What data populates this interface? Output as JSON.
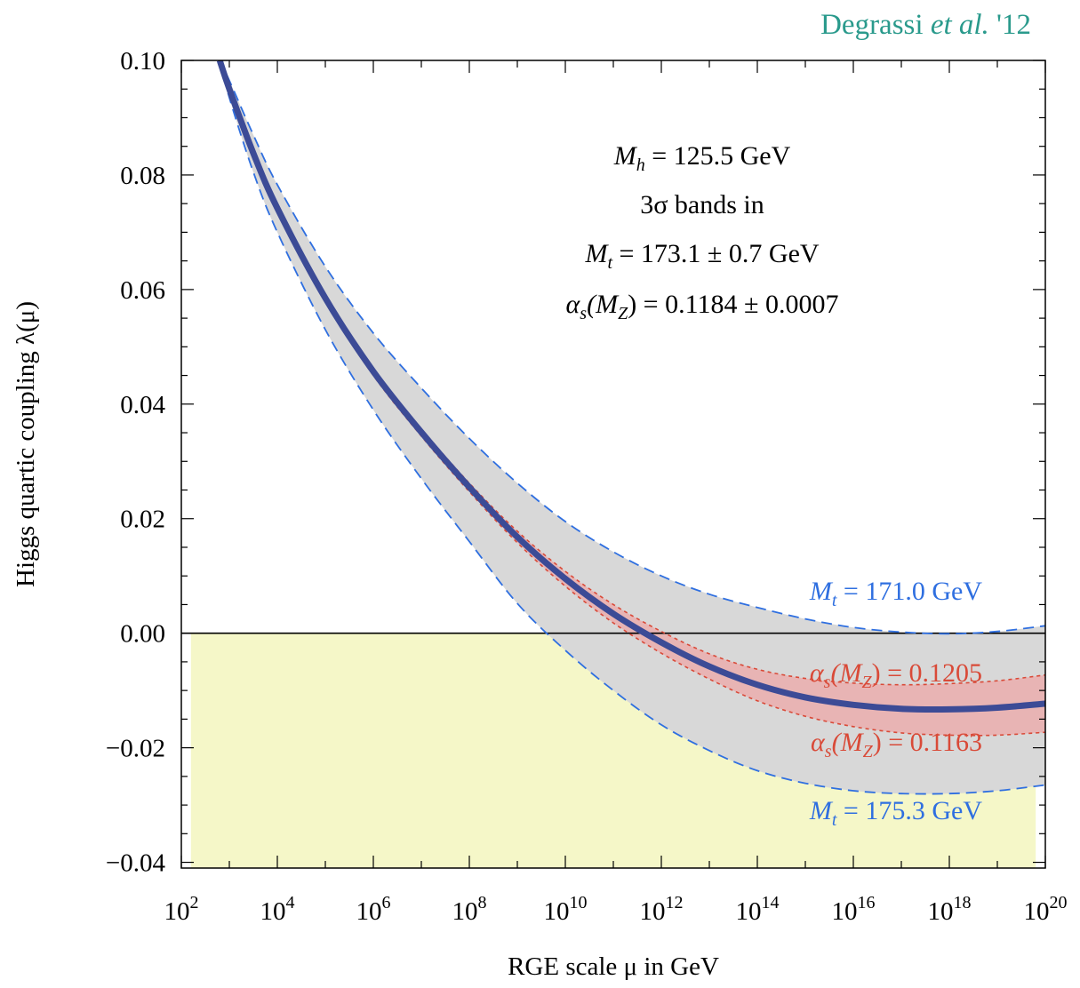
{
  "credit": {
    "prefix": "Degrassi ",
    "etal": "et al.",
    "suffix": " '12"
  },
  "colors": {
    "central": "#3c4b96",
    "red_band": "#e8b4b4",
    "red_line": "#d94a38",
    "gray_band": "#d8d8d8",
    "blue_line": "#2f6fe0",
    "instability": "#f5f7c8",
    "credit": "#2a9a8c"
  },
  "annotation": {
    "mh": {
      "sym": "M",
      "sub": "h",
      "rest": " = 125.5 GeV"
    },
    "line2": "3σ bands in",
    "mt": {
      "sym": "M",
      "sub": "t",
      "rest": " = 173.1 ± 0.7 GeV"
    },
    "as": {
      "sym": "α",
      "sub": "s",
      "mid": "(M",
      "sub2": "Z",
      "rest": ") = 0.1184 ± 0.0007"
    }
  },
  "band_labels": {
    "mt_low": {
      "sym": "M",
      "sub": "t",
      "rest": " = 171.0 GeV"
    },
    "mt_high": {
      "sym": "M",
      "sub": "t",
      "rest": " = 175.3 GeV"
    },
    "as_high": {
      "sym": "α",
      "sub": "s",
      "mid": "(M",
      "sub2": "Z",
      "rest": ") = 0.1205"
    },
    "as_low": {
      "sym": "α",
      "sub": "s",
      "mid": "(M",
      "sub2": "Z",
      "rest": ") = 0.1163"
    }
  },
  "chart_data": {
    "type": "line",
    "title": "",
    "xlabel": "RGE scale μ in GeV",
    "ylabel": "Higgs quartic coupling λ(μ)",
    "xscale": "log10",
    "xlim": [
      2,
      20
    ],
    "ylim": [
      -0.041,
      0.1
    ],
    "xticks": [
      {
        "exp": 2,
        "label": "10",
        "sup": "2"
      },
      {
        "exp": 4,
        "label": "10",
        "sup": "4"
      },
      {
        "exp": 6,
        "label": "10",
        "sup": "6"
      },
      {
        "exp": 8,
        "label": "10",
        "sup": "8"
      },
      {
        "exp": 10,
        "label": "10",
        "sup": "10"
      },
      {
        "exp": 12,
        "label": "10",
        "sup": "12"
      },
      {
        "exp": 14,
        "label": "10",
        "sup": "14"
      },
      {
        "exp": 16,
        "label": "10",
        "sup": "16"
      },
      {
        "exp": 18,
        "label": "10",
        "sup": "18"
      },
      {
        "exp": 20,
        "label": "10",
        "sup": "20"
      }
    ],
    "yticks": [
      {
        "value": 0.1,
        "label": "0.10"
      },
      {
        "value": 0.08,
        "label": "0.08"
      },
      {
        "value": 0.06,
        "label": "0.06"
      },
      {
        "value": 0.04,
        "label": "0.04"
      },
      {
        "value": 0.02,
        "label": "0.02"
      },
      {
        "value": 0.0,
        "label": "0.00"
      },
      {
        "value": -0.02,
        "label": "−0.02"
      },
      {
        "value": -0.04,
        "label": "−0.04"
      }
    ],
    "instability_region": {
      "x": [
        2.2,
        19.8
      ],
      "y": [
        -0.041,
        0.0
      ]
    },
    "series": [
      {
        "name": "central",
        "log10_mu": [
          2.8,
          3,
          3.5,
          4,
          5,
          6,
          7,
          8,
          9,
          10,
          11,
          12,
          13,
          14,
          15,
          16,
          17,
          18,
          19,
          20
        ],
        "lambda": [
          0.1,
          0.095,
          0.0838,
          0.0742,
          0.0585,
          0.0457,
          0.0351,
          0.0255,
          0.0168,
          0.0095,
          0.0034,
          -0.0016,
          -0.0058,
          -0.009,
          -0.0112,
          -0.0125,
          -0.0132,
          -0.0133,
          -0.013,
          -0.0123
        ]
      },
      {
        "name": "αs(MZ) = 0.1205",
        "log10_mu": [
          2.8,
          3,
          3.5,
          4,
          5,
          6,
          7,
          8,
          9,
          10,
          11,
          12,
          13,
          14,
          15,
          16,
          17,
          18,
          19,
          20
        ],
        "lambda": [
          0.1,
          0.0955,
          0.0843,
          0.0748,
          0.0591,
          0.0463,
          0.0357,
          0.0262,
          0.0178,
          0.0108,
          0.005,
          0.0003,
          -0.0036,
          -0.0063,
          -0.0079,
          -0.0087,
          -0.009,
          -0.0088,
          -0.0083,
          -0.0073
        ]
      },
      {
        "name": "αs(MZ) = 0.1163",
        "log10_mu": [
          2.8,
          3,
          3.5,
          4,
          5,
          6,
          7,
          8,
          9,
          10,
          11,
          12,
          13,
          14,
          15,
          16,
          17,
          18,
          19,
          20
        ],
        "lambda": [
          0.1,
          0.0945,
          0.0833,
          0.0736,
          0.0579,
          0.045,
          0.0344,
          0.0247,
          0.0158,
          0.0082,
          0.0018,
          -0.0035,
          -0.008,
          -0.0118,
          -0.0145,
          -0.0163,
          -0.0174,
          -0.0178,
          -0.0178,
          -0.0173
        ]
      },
      {
        "name": "Mt = 171.0 GeV",
        "log10_mu": [
          2.8,
          3,
          3.5,
          4,
          5,
          6,
          7,
          8,
          9,
          10,
          11,
          12,
          13,
          14,
          15,
          16,
          17,
          18,
          19,
          20
        ],
        "lambda": [
          0.1,
          0.0965,
          0.087,
          0.0783,
          0.064,
          0.0524,
          0.0428,
          0.034,
          0.0262,
          0.0195,
          0.0142,
          0.01,
          0.0068,
          0.0045,
          0.0025,
          0.001,
          0.0002,
          -0.0001,
          0.0003,
          0.0013
        ]
      },
      {
        "name": "Mt = 175.3 GeV",
        "log10_mu": [
          2.8,
          3,
          3.5,
          4,
          5,
          6,
          7,
          8,
          9,
          10,
          11,
          12,
          13,
          14,
          15,
          16,
          17,
          18,
          19,
          20
        ],
        "lambda": [
          0.1,
          0.0935,
          0.0805,
          0.07,
          0.053,
          0.039,
          0.027,
          0.016,
          0.0052,
          -0.003,
          -0.01,
          -0.016,
          -0.0205,
          -0.024,
          -0.0262,
          -0.0275,
          -0.028,
          -0.028,
          -0.0275,
          -0.0265
        ]
      }
    ]
  }
}
